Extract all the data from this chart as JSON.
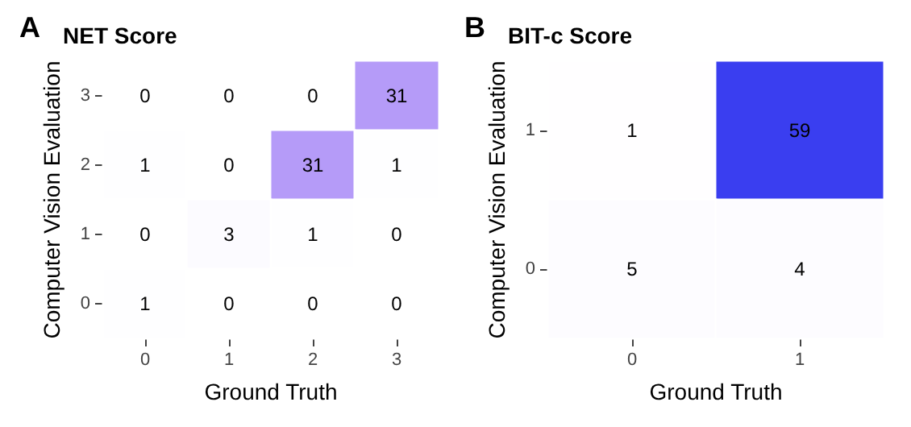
{
  "chart_data": [
    {
      "type": "heatmap",
      "title": "NET Score",
      "annotations": [
        "A"
      ],
      "xlabel": "Ground Truth",
      "ylabel": "Computer Vision Evaluation",
      "categories": [
        "0",
        "1",
        "2",
        "3"
      ],
      "y_categories": [
        "3",
        "2",
        "1",
        "0"
      ],
      "cells": [
        [
          0,
          0,
          0,
          31
        ],
        [
          1,
          0,
          31,
          1
        ],
        [
          0,
          3,
          1,
          0
        ],
        [
          1,
          0,
          0,
          0
        ]
      ],
      "data_labels": true
    },
    {
      "type": "heatmap",
      "title": "BIT-c Score",
      "annotations": [
        "B"
      ],
      "xlabel": "Ground Truth",
      "ylabel": "Computer Vision Evaluation",
      "categories": [
        "0",
        "1"
      ],
      "y_categories": [
        "1",
        "0"
      ],
      "cells": [
        [
          1,
          59
        ],
        [
          5,
          4
        ]
      ],
      "data_labels": true
    }
  ]
}
